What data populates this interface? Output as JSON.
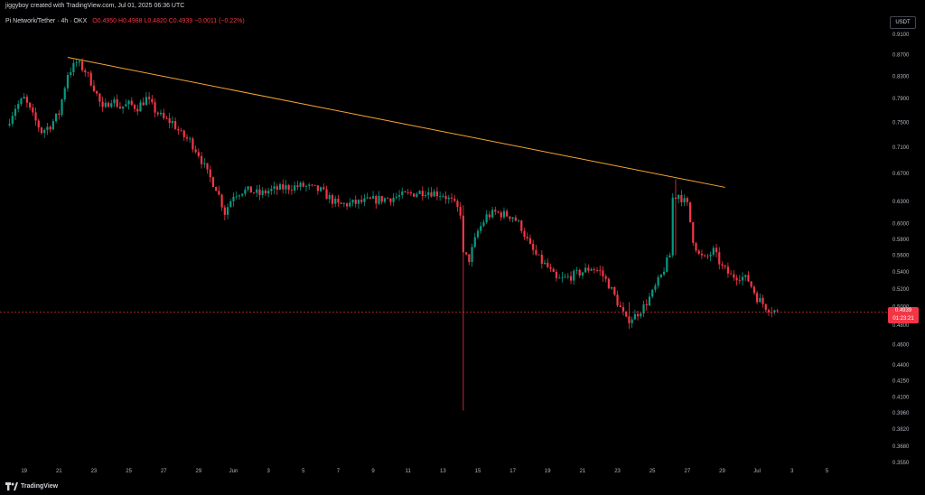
{
  "header": {
    "author": "jiggyboy created with TradingView.com, Jul 01, 2025 06:36 UTC",
    "symbol": "Pi Network/Tether · 4h · OKX",
    "open": "O0.4950",
    "high": "H0.4988",
    "low": "L0.4820",
    "close": "C0.4939",
    "change": "−0.0011 (−0.22%)",
    "currency": "USDT"
  },
  "last_price": {
    "value": "0.4939",
    "countdown": "01:23:21"
  },
  "footer": {
    "brand": "TradingView"
  },
  "colors": {
    "up": "#089981",
    "down": "#f23645",
    "trendline": "#f7a532",
    "background": "#000000",
    "price_line": "#f23645"
  },
  "chart_data": {
    "type": "candlestick",
    "title": "Pi Network/Tether · 4h · OKX",
    "xlabel": "",
    "ylabel": "",
    "y_ticks": [
      "0.9100",
      "0.8700",
      "0.8300",
      "0.7900",
      "0.7500",
      "0.7100",
      "0.6700",
      "0.6300",
      "0.6000",
      "0.5800",
      "0.5600",
      "0.5400",
      "0.5200",
      "0.5000",
      "0.4800",
      "0.4600",
      "0.4400",
      "0.4250",
      "0.4100",
      "0.3960",
      "0.3820",
      "0.3680",
      "0.3550"
    ],
    "x_ticks": [
      "19",
      "21",
      "23",
      "25",
      "27",
      "29",
      "Jun",
      "3",
      "5",
      "7",
      "9",
      "11",
      "13",
      "15",
      "17",
      "19",
      "21",
      "23",
      "25",
      "27",
      "29",
      "Jul",
      "3",
      "5"
    ],
    "log_scale": true,
    "grid": false,
    "legend": "top-left",
    "price_range": [
      0.355,
      0.91
    ],
    "last_price": 0.4939,
    "trendline": [
      {
        "date": "May 21 12:00",
        "price": 0.865
      },
      {
        "date": "Jun 28 04:00",
        "price": 0.65
      }
    ],
    "anchors": [
      {
        "date": "May 18",
        "price": 0.745
      },
      {
        "date": "May 18 12:00",
        "price": 0.775
      },
      {
        "date": "May 19",
        "price": 0.79
      },
      {
        "date": "May 19 12:00",
        "price": 0.76
      },
      {
        "date": "May 20",
        "price": 0.735
      },
      {
        "date": "May 20 12:00",
        "price": 0.745
      },
      {
        "date": "May 21",
        "price": 0.765
      },
      {
        "date": "May 21 12:00",
        "price": 0.835
      },
      {
        "date": "May 22",
        "price": 0.855
      },
      {
        "date": "May 22 12:00",
        "price": 0.84
      },
      {
        "date": "May 23",
        "price": 0.81
      },
      {
        "date": "May 23 12:00",
        "price": 0.77
      },
      {
        "date": "May 24",
        "price": 0.79
      },
      {
        "date": "May 24 12:00",
        "price": 0.775
      },
      {
        "date": "May 25",
        "price": 0.78
      },
      {
        "date": "May 25 12:00",
        "price": 0.775
      },
      {
        "date": "May 26",
        "price": 0.79
      },
      {
        "date": "May 26 12:00",
        "price": 0.77
      },
      {
        "date": "May 27",
        "price": 0.755
      },
      {
        "date": "May 27 12:00",
        "price": 0.75
      },
      {
        "date": "May 28",
        "price": 0.73
      },
      {
        "date": "May 28 12:00",
        "price": 0.72
      },
      {
        "date": "May 29",
        "price": 0.7
      },
      {
        "date": "May 29 12:00",
        "price": 0.67
      },
      {
        "date": "May 30",
        "price": 0.65
      },
      {
        "date": "May 30 12:00",
        "price": 0.615
      },
      {
        "date": "May 31",
        "price": 0.64
      },
      {
        "date": "May 31 12:00",
        "price": 0.645
      },
      {
        "date": "Jun 1",
        "price": 0.645
      },
      {
        "date": "Jun 1 12:00",
        "price": 0.64
      },
      {
        "date": "Jun 2",
        "price": 0.645
      },
      {
        "date": "Jun 3",
        "price": 0.65
      },
      {
        "date": "Jun 4",
        "price": 0.652
      },
      {
        "date": "Jun 5",
        "price": 0.645
      },
      {
        "date": "Jun 5 12:00",
        "price": 0.635
      },
      {
        "date": "Jun 6",
        "price": 0.625
      },
      {
        "date": "Jun 7",
        "price": 0.628
      },
      {
        "date": "Jun 8",
        "price": 0.632
      },
      {
        "date": "Jun 9",
        "price": 0.635
      },
      {
        "date": "Jun 10",
        "price": 0.64
      },
      {
        "date": "Jun 11",
        "price": 0.645
      },
      {
        "date": "Jun 12",
        "price": 0.64
      },
      {
        "date": "Jun 12 12:00",
        "price": 0.63
      },
      {
        "date": "Jun 13",
        "price": 0.615
      },
      {
        "date": "Jun 13 04:00",
        "price": 0.56
      },
      {
        "date": "Jun 13 12:00",
        "price": 0.555
      },
      {
        "date": "Jun 14",
        "price": 0.59
      },
      {
        "date": "Jun 14 12:00",
        "price": 0.61
      },
      {
        "date": "Jun 15",
        "price": 0.615
      },
      {
        "date": "Jun 16",
        "price": 0.61
      },
      {
        "date": "Jun 16 12:00",
        "price": 0.595
      },
      {
        "date": "Jun 17",
        "price": 0.57
      },
      {
        "date": "Jun 17 12:00",
        "price": 0.555
      },
      {
        "date": "Jun 18",
        "price": 0.545
      },
      {
        "date": "Jun 18 12:00",
        "price": 0.53
      },
      {
        "date": "Jun 19",
        "price": 0.532
      },
      {
        "date": "Jun 20",
        "price": 0.54
      },
      {
        "date": "Jun 20 12:00",
        "price": 0.545
      },
      {
        "date": "Jun 21",
        "price": 0.54
      },
      {
        "date": "Jun 21 12:00",
        "price": 0.525
      },
      {
        "date": "Jun 22",
        "price": 0.505
      },
      {
        "date": "Jun 22 12:00",
        "price": 0.485
      },
      {
        "date": "Jun 23",
        "price": 0.49
      },
      {
        "date": "Jun 23 12:00",
        "price": 0.5
      },
      {
        "date": "Jun 24",
        "price": 0.515
      },
      {
        "date": "Jun 24 12:00",
        "price": 0.535
      },
      {
        "date": "Jun 25",
        "price": 0.56
      },
      {
        "date": "Jun 25 04:00",
        "price": 0.635
      },
      {
        "date": "Jun 25 12:00",
        "price": 0.64
      },
      {
        "date": "Jun 26",
        "price": 0.625
      },
      {
        "date": "Jun 26 08:00",
        "price": 0.58
      },
      {
        "date": "Jun 26 16:00",
        "price": 0.56
      },
      {
        "date": "Jun 27",
        "price": 0.555
      },
      {
        "date": "Jun 27 12:00",
        "price": 0.565
      },
      {
        "date": "Jun 28",
        "price": 0.545
      },
      {
        "date": "Jun 28 12:00",
        "price": 0.535
      },
      {
        "date": "Jun 29",
        "price": 0.535
      },
      {
        "date": "Jun 29 12:00",
        "price": 0.53
      },
      {
        "date": "Jun 30",
        "price": 0.51
      },
      {
        "date": "Jun 30 12:00",
        "price": 0.5
      },
      {
        "date": "Jul 1 04:00",
        "price": 0.4939
      }
    ],
    "wick_events": [
      {
        "date": "Jun 13 04:00",
        "low": 0.398,
        "high": 0.625
      },
      {
        "date": "Jun 25 08:00",
        "low": 0.56,
        "high": 0.662
      },
      {
        "date": "Jun 22 16:00",
        "low": 0.476,
        "high": 0.505
      }
    ]
  }
}
